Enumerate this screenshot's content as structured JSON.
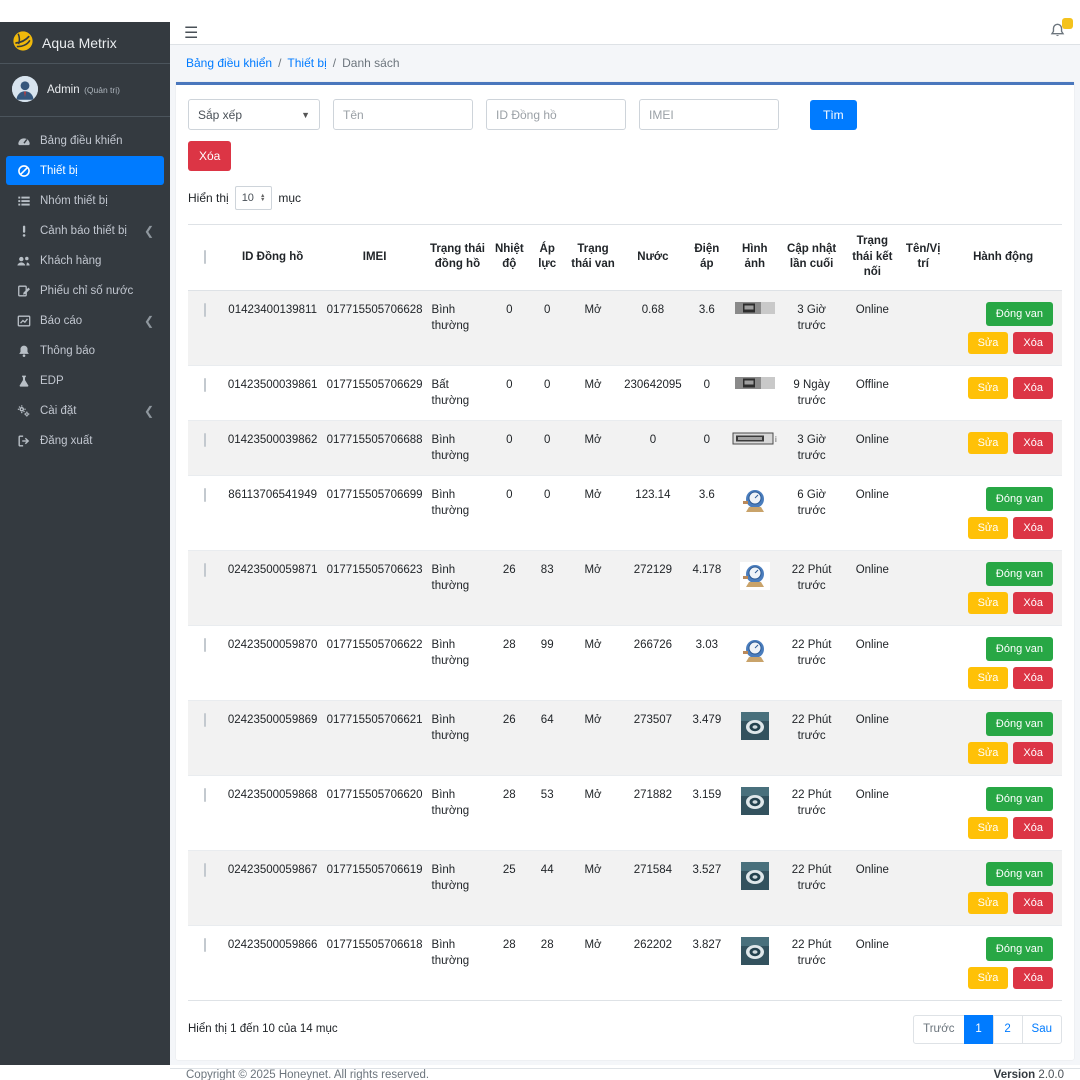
{
  "app": {
    "brand": "Aqua Metrix",
    "user_name": "Admin",
    "user_role": "(Quản trị)"
  },
  "sidebar": {
    "items": [
      {
        "label": "Bảng điều khiển",
        "icon": "tachometer",
        "active": false,
        "chevron": false
      },
      {
        "label": "Thiết bị",
        "icon": "compass",
        "active": true,
        "chevron": false
      },
      {
        "label": "Nhóm thiết bị",
        "icon": "list",
        "active": false,
        "chevron": false
      },
      {
        "label": "Cảnh báo thiết bị",
        "icon": "alert",
        "active": false,
        "chevron": true
      },
      {
        "label": "Khách hàng",
        "icon": "users",
        "active": false,
        "chevron": false
      },
      {
        "label": "Phiếu chỉ số nước",
        "icon": "note",
        "active": false,
        "chevron": false
      },
      {
        "label": "Báo cáo",
        "icon": "chart",
        "active": false,
        "chevron": true
      },
      {
        "label": "Thông báo",
        "icon": "bell",
        "active": false,
        "chevron": false
      },
      {
        "label": "EDP",
        "icon": "flask",
        "active": false,
        "chevron": false
      },
      {
        "label": "Cài đặt",
        "icon": "gears",
        "active": false,
        "chevron": true
      },
      {
        "label": "Đăng xuất",
        "icon": "logout",
        "active": false,
        "chevron": false
      }
    ]
  },
  "breadcrumb": {
    "link1": "Bảng điều khiển",
    "link2": "Thiết bị",
    "current": "Danh sách"
  },
  "filters": {
    "sort_label": "Sắp xếp",
    "name_placeholder": "Tên",
    "meter_id_placeholder": "ID Đồng hồ",
    "imei_placeholder": "IMEI",
    "search_label": "Tìm",
    "delete_label": "Xóa",
    "show_label": "Hiển thị",
    "page_size": "10",
    "items_label": "mục"
  },
  "table": {
    "headers": [
      "ID Đồng hồ",
      "IMEI",
      "Trạng thái đồng hồ",
      "Nhiệt độ",
      "Áp lực",
      "Trạng thái van",
      "Nước",
      "Điện áp",
      "Hình ảnh",
      "Cập nhật lần cuối",
      "Trạng thái kết nối",
      "Tên/Vị trí",
      "Hành động"
    ],
    "buttons": {
      "close_valve": "Đóng van",
      "edit": "Sửa",
      "delete": "Xóa"
    },
    "rows": [
      {
        "id": "01423400139811",
        "imei": "017715505706628",
        "status": "Bình thường",
        "temp": "0",
        "pressure": "0",
        "valve": "Mở",
        "water": "0.68",
        "voltage": "3.6",
        "image": "register-strip",
        "updated": "3 Giờ trước",
        "connection": "Online",
        "location": "",
        "close_valve": true
      },
      {
        "id": "01423500039861",
        "imei": "017715505706629",
        "status": "Bất thường",
        "temp": "0",
        "pressure": "0",
        "valve": "Mở",
        "water": "230642095",
        "voltage": "0",
        "image": "register-strip",
        "updated": "9 Ngày trước",
        "connection": "Offline",
        "location": "",
        "close_valve": false
      },
      {
        "id": "01423500039862",
        "imei": "017715505706688",
        "status": "Bình thường",
        "temp": "0",
        "pressure": "0",
        "valve": "Mở",
        "water": "0",
        "voltage": "0",
        "image": "register-strip-wide",
        "updated": "3 Giờ trước",
        "connection": "Online",
        "location": "",
        "close_valve": false
      },
      {
        "id": "86113706541949",
        "imei": "017715505706699",
        "status": "Bình thường",
        "temp": "0",
        "pressure": "0",
        "valve": "Mở",
        "water": "123.14",
        "voltage": "3.6",
        "image": "meter-clipart",
        "updated": "6 Giờ trước",
        "connection": "Online",
        "location": "",
        "close_valve": true
      },
      {
        "id": "02423500059871",
        "imei": "017715505706623",
        "status": "Bình thường",
        "temp": "26",
        "pressure": "83",
        "valve": "Mở",
        "water": "272129",
        "voltage": "4.178",
        "image": "meter-clipart",
        "updated": "22 Phút trước",
        "connection": "Online",
        "location": "",
        "close_valve": true
      },
      {
        "id": "02423500059870",
        "imei": "017715505706622",
        "status": "Bình thường",
        "temp": "28",
        "pressure": "99",
        "valve": "Mở",
        "water": "266726",
        "voltage": "3.03",
        "image": "meter-clipart",
        "updated": "22 Phút trước",
        "connection": "Online",
        "location": "",
        "close_valve": true
      },
      {
        "id": "02423500059869",
        "imei": "017715505706621",
        "status": "Bình thường",
        "temp": "26",
        "pressure": "64",
        "valve": "Mở",
        "water": "273507",
        "voltage": "3.479",
        "image": "meter-photo",
        "updated": "22 Phút trước",
        "connection": "Online",
        "location": "",
        "close_valve": true
      },
      {
        "id": "02423500059868",
        "imei": "017715505706620",
        "status": "Bình thường",
        "temp": "28",
        "pressure": "53",
        "valve": "Mở",
        "water": "271882",
        "voltage": "3.159",
        "image": "meter-photo",
        "updated": "22 Phút trước",
        "connection": "Online",
        "location": "",
        "close_valve": true
      },
      {
        "id": "02423500059867",
        "imei": "017715505706619",
        "status": "Bình thường",
        "temp": "25",
        "pressure": "44",
        "valve": "Mở",
        "water": "271584",
        "voltage": "3.527",
        "image": "meter-photo",
        "updated": "22 Phút trước",
        "connection": "Online",
        "location": "",
        "close_valve": true
      },
      {
        "id": "02423500059866",
        "imei": "017715505706618",
        "status": "Bình thường",
        "temp": "28",
        "pressure": "28",
        "valve": "Mở",
        "water": "262202",
        "voltage": "3.827",
        "image": "meter-photo",
        "updated": "22 Phút trước",
        "connection": "Online",
        "location": "",
        "close_valve": true
      }
    ]
  },
  "pagination": {
    "info": "Hiển thị 1 đến 10 của 14 mục",
    "prev": "Trước",
    "pages": [
      "1",
      "2"
    ],
    "active_page": "1",
    "next": "Sau"
  },
  "footer": {
    "copyright": "Copyright © 2025 Honeynet. All rights reserved.",
    "version_label": "Version",
    "version": "2.0.0"
  },
  "colors": {
    "primary": "#007bff",
    "danger": "#dc3545",
    "success": "#28a745",
    "warning": "#ffc107",
    "sidebar": "#343a40",
    "card_top": "#4a77bd",
    "badge": "#f4c21c"
  }
}
